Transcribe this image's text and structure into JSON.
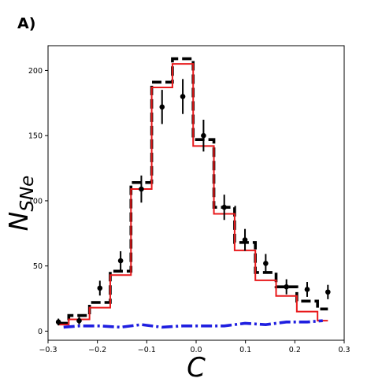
{
  "panel_label": "A)",
  "chart_data": {
    "type": "line",
    "title": "",
    "xlabel": "C",
    "ylabel": "N_SNe",
    "ylabel_parts": {
      "base": "N",
      "sub": "SNe"
    },
    "xlim": [
      -0.3,
      0.3
    ],
    "ylim": [
      -7,
      219
    ],
    "xticks": [
      -0.3,
      -0.2,
      -0.1,
      0.0,
      0.1,
      0.2,
      0.3
    ],
    "xtick_labels": [
      "−0.3",
      "−0.2",
      "−0.1",
      "0.0",
      "0.1",
      "0.2",
      "0.3"
    ],
    "yticks": [
      0,
      50,
      100,
      150,
      200
    ],
    "ytick_labels": [
      "0",
      "50",
      "100",
      "150",
      "200"
    ],
    "grid": false,
    "bin_edges": [
      -0.279,
      -0.258,
      -0.216,
      -0.174,
      -0.132,
      -0.09,
      -0.048,
      -0.006,
      0.036,
      0.078,
      0.12,
      0.162,
      0.204,
      0.246,
      0.267
    ],
    "series": [
      {
        "style": "dashed-step",
        "color": "#000000",
        "values": [
          6,
          12,
          22,
          46,
          114,
          191,
          209,
          147,
          95,
          68,
          45,
          34,
          23,
          17
        ]
      },
      {
        "style": "solid-step",
        "color": "#e8191b",
        "values": [
          5,
          9,
          18,
          43,
          109,
          187,
          205,
          142,
          90,
          62,
          39,
          27,
          15,
          8
        ]
      },
      {
        "style": "dashdot",
        "color": "#1f1fe0",
        "values": [
          3,
          4,
          4,
          3,
          5,
          3,
          4,
          4,
          4,
          6,
          5,
          7,
          7,
          8
        ]
      },
      {
        "style": "points-errorbars",
        "color": "#000000",
        "x": [
          -0.279,
          -0.237,
          -0.195,
          -0.153,
          -0.111,
          -0.069,
          -0.027,
          0.015,
          0.057,
          0.099,
          0.141,
          0.183,
          0.225,
          0.267
        ],
        "values": [
          7,
          8,
          33,
          54,
          109,
          172,
          180,
          150,
          95,
          70,
          52,
          34,
          32,
          30
        ],
        "errors": [
          2.6,
          2.8,
          5.7,
          7.3,
          10.4,
          13.1,
          13.4,
          12.2,
          9.7,
          8.4,
          7.2,
          5.8,
          5.7,
          5.5
        ]
      }
    ]
  }
}
